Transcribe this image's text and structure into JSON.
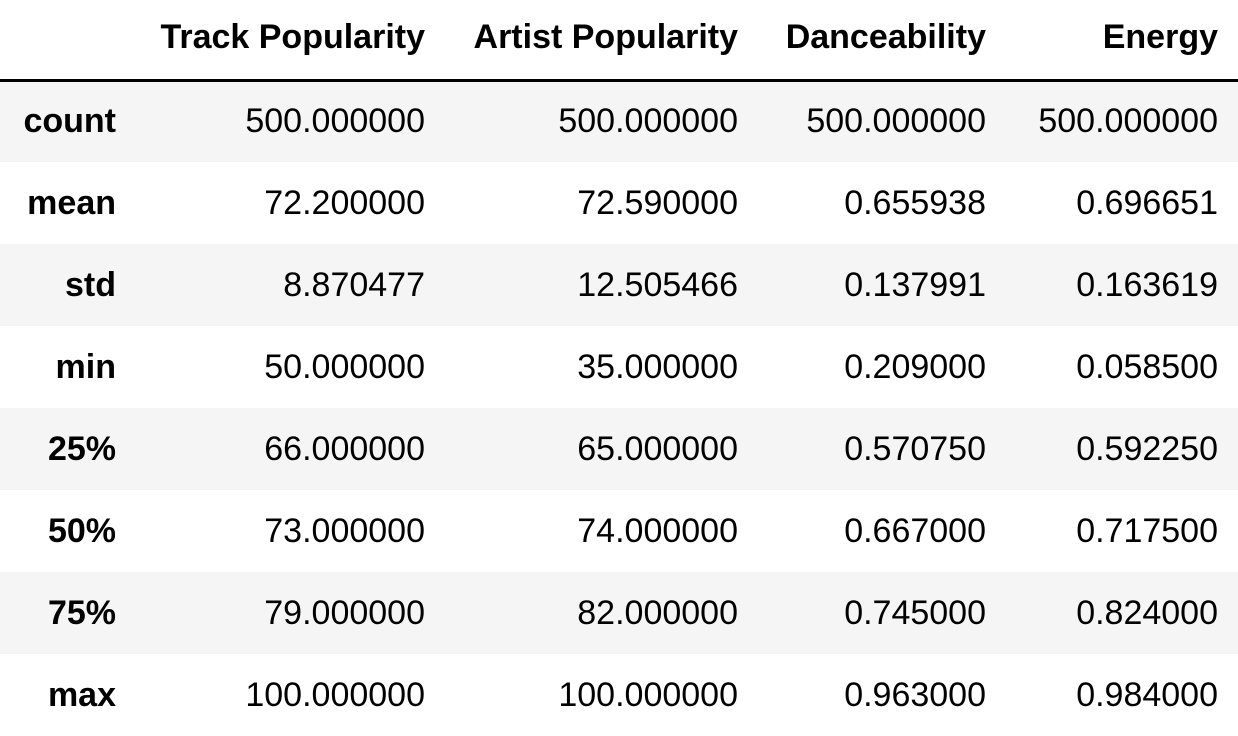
{
  "table": {
    "columns": [
      "Track Popularity",
      "Artist Popularity",
      "Danceability",
      "Energy"
    ],
    "rows": [
      {
        "label": "count",
        "values": [
          "500.000000",
          "500.000000",
          "500.000000",
          "500.000000"
        ]
      },
      {
        "label": "mean",
        "values": [
          "72.200000",
          "72.590000",
          "0.655938",
          "0.696651"
        ]
      },
      {
        "label": "std",
        "values": [
          "8.870477",
          "12.505466",
          "0.137991",
          "0.163619"
        ]
      },
      {
        "label": "min",
        "values": [
          "50.000000",
          "35.000000",
          "0.209000",
          "0.058500"
        ]
      },
      {
        "label": "25%",
        "values": [
          "66.000000",
          "65.000000",
          "0.570750",
          "0.592250"
        ]
      },
      {
        "label": "50%",
        "values": [
          "73.000000",
          "74.000000",
          "0.667000",
          "0.717500"
        ]
      },
      {
        "label": "75%",
        "values": [
          "79.000000",
          "82.000000",
          "0.745000",
          "0.824000"
        ]
      },
      {
        "label": "max",
        "values": [
          "100.000000",
          "100.000000",
          "0.963000",
          "0.984000"
        ]
      }
    ]
  },
  "colors": {
    "stripe": "#f5f5f5",
    "background": "#ffffff",
    "text": "#000000",
    "header_rule": "#000000"
  }
}
